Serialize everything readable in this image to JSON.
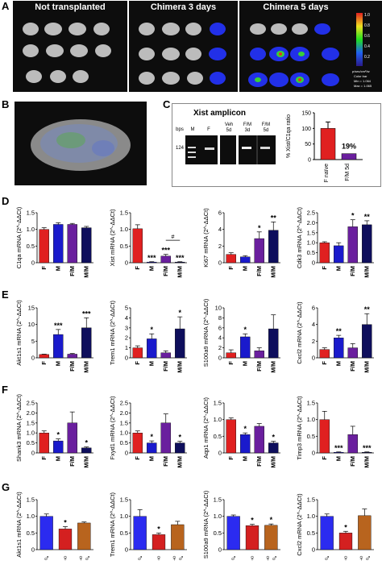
{
  "panel_letters": {
    "a": "A",
    "b": "B",
    "c": "C",
    "d": "D",
    "e": "E",
    "f": "F",
    "g": "G"
  },
  "panelA": {
    "headers": [
      "Not transplanted",
      "Chimera 3 days",
      "Chimera 5 days"
    ],
    "colorbar": {
      "top": "1.0",
      "mid": "0.8",
      "mid2": "0.6",
      "mid3": "0.4",
      "mid4": "0.2",
      "unit_note": "p/sec/cm²/sr",
      "info1": "Color bar",
      "info2": "Min = 1.064",
      "info3": "Max = 1.065"
    }
  },
  "panelC": {
    "title": "Xist amplicon",
    "lane_labels": [
      "bps",
      "M",
      "F",
      "Veh\n5d",
      "F/M\n3d",
      "F/M\n5d"
    ],
    "bp": "124",
    "bar_ylabel": "% Xist/C1qa ratio",
    "bar_cats": [
      "F naïve",
      "F/M 5d"
    ],
    "bar_values": [
      100,
      19
    ],
    "bar_ticks": [
      "0",
      "50",
      "100",
      "150"
    ],
    "pct_label": "19%"
  },
  "chart_data": [
    {
      "type": "bar",
      "panel": "D",
      "ylabel": "C1qa mRNA (2^-ΔΔCt)",
      "categories": [
        "F",
        "M",
        "F/M",
        "M/M"
      ],
      "values": [
        1.0,
        1.15,
        1.15,
        1.05
      ],
      "errors": [
        0.05,
        0.05,
        0.03,
        0.04
      ],
      "ylim": [
        0,
        1.5
      ],
      "ticks": [
        "0",
        "0.5",
        "1.0",
        "1.5"
      ],
      "stars": [
        "",
        "",
        "",
        ""
      ]
    },
    {
      "type": "bar",
      "panel": "D",
      "ylabel": "Xist mRNA (2^-ΔΔCt)",
      "categories": [
        "F",
        "M",
        "F/M",
        "M/M"
      ],
      "values": [
        1.02,
        0.02,
        0.2,
        0.02
      ],
      "errors": [
        0.12,
        0.01,
        0.05,
        0.01
      ],
      "ylim": [
        0,
        1.5
      ],
      "ticks": [
        "0",
        "0.5",
        "1.0",
        "1.5"
      ],
      "stars": [
        "",
        "***",
        "***",
        "***"
      ],
      "extra": "#"
    },
    {
      "type": "bar",
      "panel": "D",
      "ylabel": "Ki67 mRNA (2^-ΔΔCt)",
      "categories": [
        "F",
        "M",
        "F/M",
        "M/M"
      ],
      "values": [
        1.0,
        0.7,
        2.9,
        3.9
      ],
      "errors": [
        0.2,
        0.15,
        0.8,
        1.0
      ],
      "ylim": [
        0,
        6
      ],
      "ticks": [
        "0",
        "2",
        "4",
        "6"
      ],
      "stars": [
        "",
        "",
        "*",
        "**"
      ]
    },
    {
      "type": "bar",
      "panel": "D",
      "ylabel": "Cdk3 mRNA (2^-ΔΔCt)",
      "categories": [
        "F",
        "M",
        "F/M",
        "M/M"
      ],
      "values": [
        1.0,
        0.85,
        1.8,
        1.9
      ],
      "errors": [
        0.05,
        0.15,
        0.35,
        0.2
      ],
      "ylim": [
        0,
        2.5
      ],
      "ticks": [
        "0",
        "0.5",
        "1.0",
        "1.5",
        "2.0",
        "2.5"
      ],
      "stars": [
        "",
        "",
        "*",
        "**"
      ]
    },
    {
      "type": "bar",
      "panel": "E",
      "ylabel": "Akt1s1 mRNA (2^-ΔΔCt)",
      "categories": [
        "F",
        "M",
        "F/M",
        "M/M"
      ],
      "values": [
        1.0,
        7.0,
        1.1,
        9.0
      ],
      "errors": [
        0.1,
        1.5,
        0.2,
        3.0
      ],
      "ylim": [
        0,
        15
      ],
      "ticks": [
        "0",
        "5",
        "10",
        "15"
      ],
      "stars": [
        "",
        "***",
        "",
        "***"
      ]
    },
    {
      "type": "bar",
      "panel": "E",
      "ylabel": "Trem1 mRNA (2^-ΔΔCt)",
      "categories": [
        "F",
        "M",
        "F/M",
        "M/M"
      ],
      "values": [
        1.0,
        1.9,
        0.5,
        2.9
      ],
      "errors": [
        0.2,
        0.5,
        0.2,
        1.2
      ],
      "ylim": [
        0,
        5
      ],
      "ticks": [
        "0",
        "1",
        "2",
        "3",
        "4",
        "5"
      ],
      "stars": [
        "",
        "*",
        "",
        "*"
      ]
    },
    {
      "type": "bar",
      "panel": "E",
      "ylabel": "S100a9 mRNA (2^-ΔΔCt)",
      "categories": [
        "F",
        "M",
        "F/M",
        "M/M"
      ],
      "values": [
        1.0,
        4.2,
        1.4,
        5.8
      ],
      "errors": [
        0.6,
        0.6,
        0.6,
        2.8
      ],
      "ylim": [
        0,
        10
      ],
      "ticks": [
        "0",
        "2",
        "4",
        "6",
        "8",
        "10"
      ],
      "stars": [
        "",
        "*",
        "",
        ""
      ]
    },
    {
      "type": "bar",
      "panel": "E",
      "ylabel": "Cxcl2 mRNA (2^-ΔΔCt)",
      "categories": [
        "F",
        "M",
        "F/M",
        "M/M"
      ],
      "values": [
        1.0,
        2.4,
        1.2,
        4.0
      ],
      "errors": [
        0.2,
        0.3,
        0.5,
        1.3
      ],
      "ylim": [
        0,
        6
      ],
      "ticks": [
        "0",
        "2",
        "4",
        "6"
      ],
      "stars": [
        "",
        "**",
        "",
        "**"
      ]
    },
    {
      "type": "bar",
      "panel": "F",
      "ylabel": "Shank3 mRNA (2^-ΔΔCt)",
      "categories": [
        "F",
        "M",
        "F/M",
        "M/M"
      ],
      "values": [
        1.0,
        0.6,
        1.5,
        0.25
      ],
      "errors": [
        0.1,
        0.1,
        0.55,
        0.05
      ],
      "ylim": [
        0,
        2.5
      ],
      "ticks": [
        "0",
        "0.5",
        "1.0",
        "1.5",
        "2.0",
        "2.5"
      ],
      "stars": [
        "",
        "*",
        "",
        "*"
      ]
    },
    {
      "type": "bar",
      "panel": "F",
      "ylabel": "Fxyd1 mRNA (2^-ΔΔCt)",
      "categories": [
        "F",
        "M",
        "F/M",
        "M/M"
      ],
      "values": [
        1.0,
        0.5,
        1.5,
        0.5
      ],
      "errors": [
        0.1,
        0.1,
        0.45,
        0.08
      ],
      "ylim": [
        0,
        2.5
      ],
      "ticks": [
        "0",
        "0.5",
        "1.0",
        "1.5",
        "2.0",
        "2.5"
      ],
      "stars": [
        "",
        "*",
        "",
        "*"
      ]
    },
    {
      "type": "bar",
      "panel": "F",
      "ylabel": "Aqp1 mRNA (2^-ΔΔCt)",
      "categories": [
        "F",
        "M",
        "F/M",
        "M/M"
      ],
      "values": [
        1.0,
        0.55,
        0.8,
        0.3
      ],
      "errors": [
        0.05,
        0.05,
        0.08,
        0.05
      ],
      "ylim": [
        0,
        1.5
      ],
      "ticks": [
        "0",
        "0.5",
        "1.0",
        "1.5"
      ],
      "stars": [
        "",
        "*",
        "",
        "*"
      ]
    },
    {
      "type": "bar",
      "panel": "F",
      "ylabel": "Timp3 mRNA (2^-ΔΔCt)",
      "categories": [
        "F",
        "M",
        "F/M",
        "M/M"
      ],
      "values": [
        1.0,
        0.02,
        0.55,
        0.02
      ],
      "errors": [
        0.25,
        0.01,
        0.25,
        0.01
      ],
      "ylim": [
        0,
        1.5
      ],
      "ticks": [
        "0",
        "0.5",
        "1.0",
        "1.5"
      ],
      "stars": [
        "",
        "***",
        "",
        "***"
      ]
    },
    {
      "type": "bar",
      "panel": "G",
      "ylabel": "Akt1s1 mRNA (2^-ΔΔCt)",
      "categories": [
        "♂",
        "♀",
        "♀♂"
      ],
      "values": [
        1.0,
        0.62,
        0.8
      ],
      "errors": [
        0.07,
        0.07,
        0.03
      ],
      "ylim": [
        0,
        1.5
      ],
      "ticks": [
        "0",
        "0.5",
        "1.0",
        "1.5"
      ],
      "stars": [
        "",
        "*",
        ""
      ]
    },
    {
      "type": "bar",
      "panel": "G",
      "ylabel": "Trem1 mRNA (2^-ΔΔCt)",
      "categories": [
        "♂",
        "♀",
        "♀♂"
      ],
      "values": [
        1.0,
        0.45,
        0.75
      ],
      "errors": [
        0.2,
        0.05,
        0.1
      ],
      "ylim": [
        0,
        1.5
      ],
      "ticks": [
        "0",
        "0.5",
        "1.0",
        "1.5"
      ],
      "stars": [
        "",
        "*",
        ""
      ]
    },
    {
      "type": "bar",
      "panel": "G",
      "ylabel": "S100a9 mRNA (2^-ΔΔCt)",
      "categories": [
        "♂",
        "♀",
        "♀♂"
      ],
      "values": [
        1.0,
        0.72,
        0.73
      ],
      "errors": [
        0.04,
        0.04,
        0.04
      ],
      "ylim": [
        0,
        1.5
      ],
      "ticks": [
        "0",
        "0.5",
        "1.0",
        "1.5"
      ],
      "stars": [
        "",
        "*",
        "*"
      ]
    },
    {
      "type": "bar",
      "panel": "G",
      "ylabel": "Cxcl2 mRNA (2^-ΔΔCt)",
      "categories": [
        "♂",
        "♀",
        "♀♂"
      ],
      "values": [
        1.0,
        0.5,
        1.02
      ],
      "errors": [
        0.07,
        0.05,
        0.2
      ],
      "ylim": [
        0,
        1.5
      ],
      "ticks": [
        "0",
        "0.5",
        "1.0",
        "1.5"
      ],
      "stars": [
        "",
        "*",
        ""
      ]
    }
  ],
  "colors": {
    "F": "#e02020",
    "M": "#1a1acc",
    "FM": "#6a1f9e",
    "MM": "#0e0e5c",
    "G1": "#2b2bf0",
    "G2": "#d42020",
    "G3": "#b8641e",
    "grey": "#e0e0e0"
  }
}
